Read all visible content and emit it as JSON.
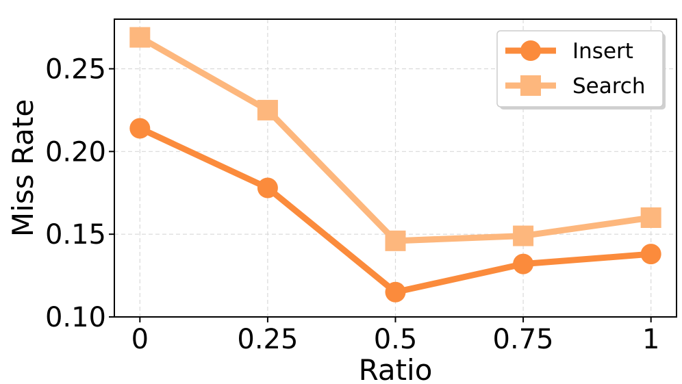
{
  "chart_data": {
    "type": "line",
    "xlabel": "Ratio",
    "ylabel": "Miss Rate",
    "x": [
      0,
      0.25,
      0.5,
      0.75,
      1
    ],
    "x_tick_labels": [
      "0",
      "0.25",
      "0.5",
      "0.75",
      "1"
    ],
    "y_ticks": [
      0.1,
      0.15,
      0.2,
      0.25
    ],
    "y_tick_labels": [
      "0.10",
      "0.15",
      "0.20",
      "0.25"
    ],
    "xlim": [
      -0.05,
      1.05
    ],
    "ylim": [
      0.1,
      0.28
    ],
    "grid": true,
    "legend_position": "top-right",
    "series": [
      {
        "name": "Insert",
        "marker": "circle",
        "color": "#FB8B3C",
        "values": [
          0.214,
          0.178,
          0.115,
          0.132,
          0.138
        ]
      },
      {
        "name": "Search",
        "marker": "square",
        "color": "#FDB77D",
        "values": [
          0.269,
          0.225,
          0.146,
          0.149,
          0.16
        ]
      }
    ]
  }
}
